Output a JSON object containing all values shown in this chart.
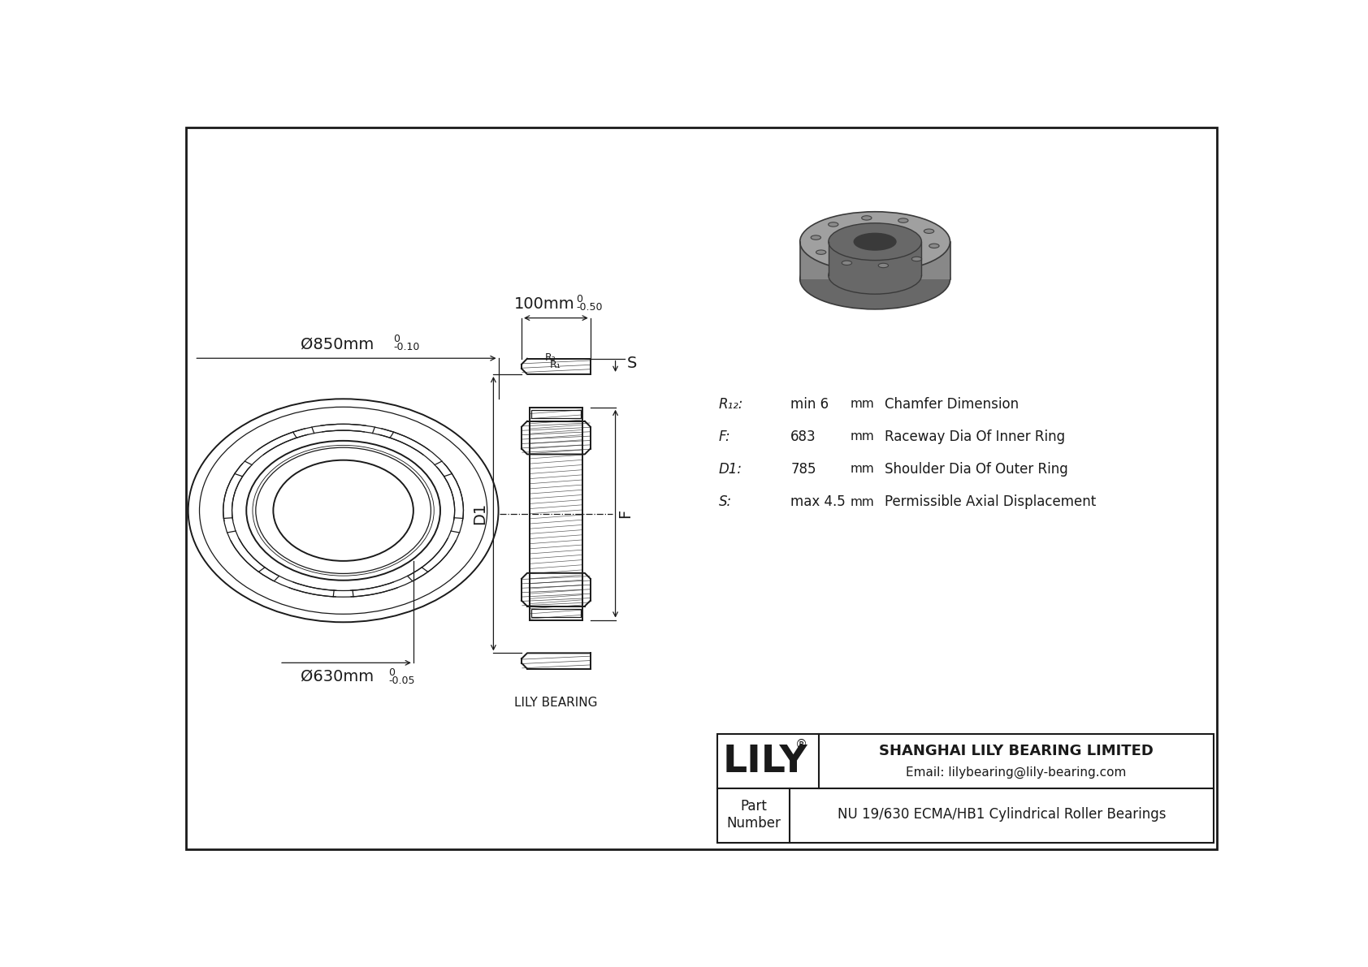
{
  "bg_color": "#ffffff",
  "line_color": "#1a1a1a",
  "part_number": "NU 19/630 ECMA/HB1 Cylindrical Roller Bearings",
  "company": "SHANGHAI LILY BEARING LIMITED",
  "email": "Email: lilybearing@lily-bearing.com",
  "lily_text": "LILY",
  "outer_dia_label": "Ø850mm",
  "outer_dia_tol_top": "0",
  "outer_dia_tol_bot": "-0.10",
  "inner_dia_label": "Ø630mm",
  "inner_dia_tol_top": "0",
  "inner_dia_tol_bot": "-0.05",
  "width_label": "100mm",
  "width_tol_top": "0",
  "width_tol_bot": "-0.50",
  "params": [
    {
      "sym": "R₁₂:",
      "val": "min 6",
      "unit": "mm",
      "desc": "Chamfer Dimension"
    },
    {
      "sym": "F:",
      "val": "683",
      "unit": "mm",
      "desc": "Raceway Dia Of Inner Ring"
    },
    {
      "sym": "D1:",
      "val": "785",
      "unit": "mm",
      "desc": "Shoulder Dia Of Outer Ring"
    },
    {
      "sym": "S:",
      "val": "max 4.5",
      "unit": "mm",
      "desc": "Permissible Axial Displacement"
    }
  ],
  "lily_bearing_label": "LILY BEARING"
}
